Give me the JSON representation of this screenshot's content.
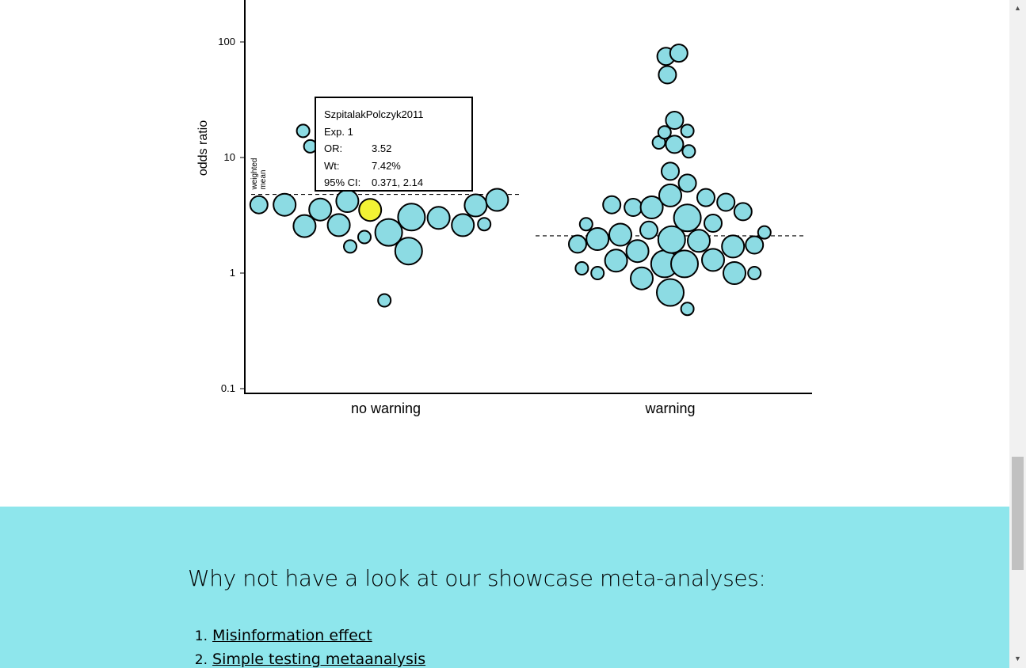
{
  "chart_data": {
    "type": "scatter",
    "ylabel": "odds ratio",
    "yscale": "log",
    "ylim": [
      0.1,
      150
    ],
    "yticks": [
      "100",
      "10",
      "1",
      "0.1"
    ],
    "categories": [
      "no warning",
      "warning"
    ],
    "mean_label": "weighted mean",
    "weighted_means": {
      "no warning": 4.8,
      "warning": 2.1
    },
    "points": [
      {
        "group": "no warning",
        "jitter": -0.89,
        "or": 3.9,
        "size": "s"
      },
      {
        "group": "no warning",
        "jitter": -0.71,
        "or": 3.9,
        "size": "m"
      },
      {
        "group": "no warning",
        "jitter": -0.57,
        "or": 2.55,
        "size": "m"
      },
      {
        "group": "no warning",
        "jitter": -0.46,
        "or": 3.55,
        "size": "m"
      },
      {
        "group": "no warning",
        "jitter": -0.33,
        "or": 2.6,
        "size": "m"
      },
      {
        "group": "no warning",
        "jitter": -0.27,
        "or": 4.2,
        "size": "m"
      },
      {
        "group": "no warning",
        "jitter": -0.25,
        "or": 1.7,
        "size": "xs"
      },
      {
        "group": "no warning",
        "jitter": -0.15,
        "or": 2.05,
        "size": "xs"
      },
      {
        "group": "no warning",
        "jitter": -0.11,
        "or": 3.52,
        "size": "m",
        "highlight": true
      },
      {
        "group": "no warning",
        "jitter": -0.01,
        "or": 0.58,
        "size": "xs"
      },
      {
        "group": "no warning",
        "jitter": 0.02,
        "or": 2.25,
        "size": "l"
      },
      {
        "group": "no warning",
        "jitter": 0.16,
        "or": 1.55,
        "size": "l"
      },
      {
        "group": "no warning",
        "jitter": 0.18,
        "or": 3.05,
        "size": "l"
      },
      {
        "group": "no warning",
        "jitter": 0.37,
        "or": 3.0,
        "size": "m"
      },
      {
        "group": "no warning",
        "jitter": 0.54,
        "or": 2.6,
        "size": "m"
      },
      {
        "group": "no warning",
        "jitter": 0.63,
        "or": 3.85,
        "size": "m"
      },
      {
        "group": "no warning",
        "jitter": 0.69,
        "or": 2.65,
        "size": "xs"
      },
      {
        "group": "no warning",
        "jitter": 0.78,
        "or": 4.3,
        "size": "m"
      },
      {
        "group": "no warning",
        "jitter": -0.58,
        "or": 17.0,
        "size": "xs"
      },
      {
        "group": "no warning",
        "jitter": -0.53,
        "or": 12.5,
        "size": "xs"
      },
      {
        "group": "warning",
        "jitter": -0.65,
        "or": 1.78,
        "size": "s"
      },
      {
        "group": "warning",
        "jitter": -0.62,
        "or": 1.1,
        "size": "xs"
      },
      {
        "group": "warning",
        "jitter": -0.59,
        "or": 2.65,
        "size": "xs"
      },
      {
        "group": "warning",
        "jitter": -0.51,
        "or": 1.97,
        "size": "m"
      },
      {
        "group": "warning",
        "jitter": -0.51,
        "or": 1.0,
        "size": "xs"
      },
      {
        "group": "warning",
        "jitter": -0.41,
        "or": 3.9,
        "size": "s"
      },
      {
        "group": "warning",
        "jitter": -0.38,
        "or": 1.28,
        "size": "m"
      },
      {
        "group": "warning",
        "jitter": -0.35,
        "or": 2.15,
        "size": "m"
      },
      {
        "group": "warning",
        "jitter": -0.26,
        "or": 3.7,
        "size": "s"
      },
      {
        "group": "warning",
        "jitter": -0.23,
        "or": 1.55,
        "size": "m"
      },
      {
        "group": "warning",
        "jitter": -0.2,
        "or": 0.9,
        "size": "m"
      },
      {
        "group": "warning",
        "jitter": -0.15,
        "or": 2.35,
        "size": "s"
      },
      {
        "group": "warning",
        "jitter": -0.13,
        "or": 3.7,
        "size": "m"
      },
      {
        "group": "warning",
        "jitter": -0.08,
        "or": 13.5,
        "size": "xs"
      },
      {
        "group": "warning",
        "jitter": -0.04,
        "or": 16.5,
        "size": "xs"
      },
      {
        "group": "warning",
        "jitter": -0.04,
        "or": 1.2,
        "size": "l"
      },
      {
        "group": "warning",
        "jitter": -0.03,
        "or": 75.0,
        "size": "s"
      },
      {
        "group": "warning",
        "jitter": -0.02,
        "or": 52.0,
        "size": "s"
      },
      {
        "group": "warning",
        "jitter": 0.0,
        "or": 7.6,
        "size": "s"
      },
      {
        "group": "warning",
        "jitter": 0.0,
        "or": 4.7,
        "size": "m"
      },
      {
        "group": "warning",
        "jitter": 0.01,
        "or": 1.95,
        "size": "l"
      },
      {
        "group": "warning",
        "jitter": 0.0,
        "or": 0.68,
        "size": "l"
      },
      {
        "group": "warning",
        "jitter": 0.03,
        "or": 21.0,
        "size": "s"
      },
      {
        "group": "warning",
        "jitter": 0.03,
        "or": 13.0,
        "size": "s"
      },
      {
        "group": "warning",
        "jitter": 0.06,
        "or": 80.0,
        "size": "s"
      },
      {
        "group": "warning",
        "jitter": 0.1,
        "or": 1.2,
        "size": "l"
      },
      {
        "group": "warning",
        "jitter": 0.12,
        "or": 17.0,
        "size": "xs"
      },
      {
        "group": "warning",
        "jitter": 0.12,
        "or": 6.0,
        "size": "s"
      },
      {
        "group": "warning",
        "jitter": 0.12,
        "or": 3.0,
        "size": "l"
      },
      {
        "group": "warning",
        "jitter": 0.12,
        "or": 0.49,
        "size": "xs"
      },
      {
        "group": "warning",
        "jitter": 0.13,
        "or": 11.3,
        "size": "xs"
      },
      {
        "group": "warning",
        "jitter": 0.2,
        "or": 1.9,
        "size": "m"
      },
      {
        "group": "warning",
        "jitter": 0.25,
        "or": 4.5,
        "size": "s"
      },
      {
        "group": "warning",
        "jitter": 0.3,
        "or": 2.7,
        "size": "s"
      },
      {
        "group": "warning",
        "jitter": 0.3,
        "or": 1.3,
        "size": "m"
      },
      {
        "group": "warning",
        "jitter": 0.39,
        "or": 4.1,
        "size": "s"
      },
      {
        "group": "warning",
        "jitter": 0.44,
        "or": 1.7,
        "size": "m"
      },
      {
        "group": "warning",
        "jitter": 0.45,
        "or": 1.0,
        "size": "m"
      },
      {
        "group": "warning",
        "jitter": 0.51,
        "or": 3.4,
        "size": "s"
      },
      {
        "group": "warning",
        "jitter": 0.59,
        "or": 1.75,
        "size": "s"
      },
      {
        "group": "warning",
        "jitter": 0.59,
        "or": 1.0,
        "size": "xs"
      },
      {
        "group": "warning",
        "jitter": 0.66,
        "or": 2.25,
        "size": "xs"
      }
    ],
    "tooltip": {
      "study": "SzpitalakPolczyk2011",
      "experiment": "Exp. 1",
      "or_key": "OR:",
      "or_value": "3.52",
      "wt_key": "Wt:",
      "wt_value": "7.42%",
      "ci_key": "95% CI:",
      "ci_value": "0.371, 2.14"
    }
  },
  "colors": {
    "bubble_fill": "#8cdbe3",
    "highlight_fill": "#f2f234",
    "showcase_bg": "#8ee6ec"
  },
  "showcase": {
    "title": "Why not have a look at our showcase meta-analyses:",
    "items": [
      {
        "num": "1.",
        "label": "Misinformation effect"
      },
      {
        "num": "2.",
        "label": "Simple testing metaanalysis"
      }
    ]
  },
  "scrollbar": {
    "up_icon": "triangle-up-icon",
    "down_icon": "triangle-down-icon"
  }
}
